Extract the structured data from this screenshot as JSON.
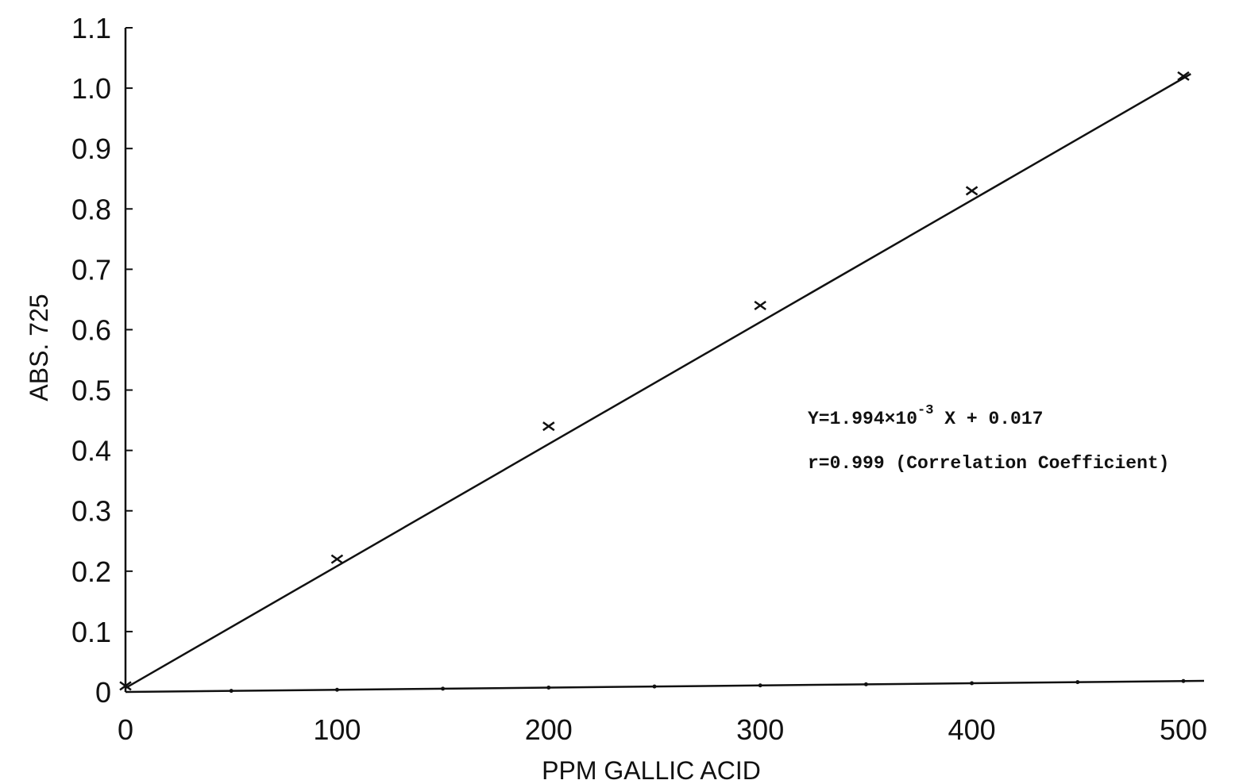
{
  "chart_data": {
    "type": "scatter",
    "title": "",
    "xlabel": "PPM GALLIC ACID",
    "ylabel": "ABS. 725",
    "xlim": [
      0,
      500
    ],
    "ylim": [
      0,
      1.1
    ],
    "x_ticks": [
      0,
      100,
      200,
      300,
      400,
      500
    ],
    "x_tick_labels": [
      "0",
      "100",
      "200",
      "300",
      "400",
      "500"
    ],
    "y_ticks": [
      0,
      0.1,
      0.2,
      0.3,
      0.4,
      0.5,
      0.6,
      0.7,
      0.8,
      0.9,
      1.0,
      1.1
    ],
    "y_tick_labels": [
      "0",
      "0.1",
      "0.2",
      "0.3",
      "0.4",
      "0.5",
      "0.6",
      "0.7",
      "0.8",
      "0.9",
      "1.0",
      "1.1"
    ],
    "grid": false,
    "legend": "none",
    "series": [
      {
        "marker": "x",
        "x": [
          0,
          100,
          200,
          300,
          400,
          500
        ],
        "y": [
          0.01,
          0.22,
          0.44,
          0.64,
          0.83,
          1.02
        ]
      }
    ],
    "fit_line": {
      "slope": 0.001994,
      "intercept": 0.017,
      "x_range": [
        0,
        500
      ]
    },
    "annotations": {
      "equation_prefix": "Y=1.994×10",
      "equation_exponent": "-3",
      "equation_suffix": " X + 0.017",
      "correlation": "r=0.999 (Correlation Coefficient)"
    },
    "colors": {
      "ink": "#111111",
      "background": "#ffffff"
    }
  }
}
